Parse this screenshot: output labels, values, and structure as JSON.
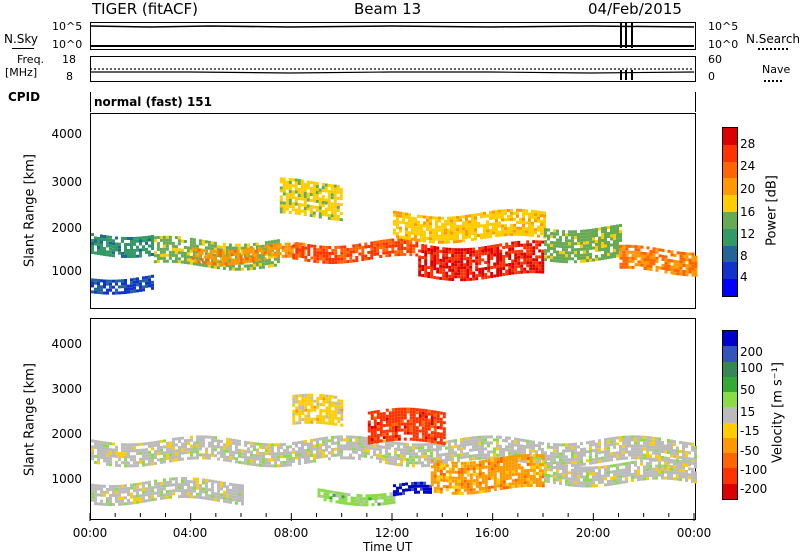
{
  "header": {
    "radar": "TIGER (fitACF)",
    "beam": "Beam 13",
    "date": "04/Feb/2015"
  },
  "top_panels": {
    "nsky_label": "N.Sky",
    "nsearch_label": "N.Search",
    "nsky_ticks": [
      "10^5",
      "10^0"
    ],
    "nsearch_ticks": [
      "10^5",
      "10^0"
    ],
    "freq_label_1": "Freq.",
    "freq_label_2": "[MHz]",
    "freq_ticks": [
      "18",
      "8"
    ],
    "nave_label": "Nave",
    "nave_ticks": [
      "60",
      "0"
    ],
    "cpid_label": "CPID",
    "cpid_text": "normal (fast) 151"
  },
  "x_axis": {
    "ticks": [
      "00:00",
      "04:00",
      "08:00",
      "12:00",
      "16:00",
      "20:00",
      "00:00"
    ],
    "label": "Time UT"
  },
  "power_panel": {
    "ylabel": "Slant Range [km]",
    "yticks": [
      "4000",
      "3000",
      "2000",
      "1000"
    ],
    "cbar_label": "Power [dB]",
    "cbar_ticks": [
      "28",
      "24",
      "20",
      "16",
      "12",
      "8",
      "4"
    ],
    "cbar_colors": [
      "#dd0000",
      "#ff3300",
      "#ff6600",
      "#ff9900",
      "#ffcc00",
      "#66aa55",
      "#339966",
      "#226699",
      "#1133cc",
      "#0000ff"
    ]
  },
  "velocity_panel": {
    "ylabel": "Slant Range [km]",
    "yticks": [
      "4000",
      "3000",
      "2000",
      "1000"
    ],
    "cbar_label": "Velocity [m s⁻¹]",
    "cbar_ticks": [
      "200",
      "100",
      "50",
      "15",
      "-15",
      "-50",
      "-100",
      "-200"
    ],
    "cbar_colors": [
      "#0000cc",
      "#3355bb",
      "#338855",
      "#33aa33",
      "#88dd44",
      "#bbbbbb",
      "#ffcc00",
      "#ff9900",
      "#ff6600",
      "#ff3300",
      "#dd0000"
    ]
  },
  "chart_data": [
    {
      "type": "heatmap",
      "title": "Beam 13",
      "xlabel": "Time UT",
      "ylabel": "Slant Range [km]",
      "xlim": [
        "00:00",
        "00:00"
      ],
      "ylim": [
        180,
        4500
      ],
      "colorbar": "Power [dB]",
      "colorbar_range": [
        0,
        30
      ],
      "bands": [
        {
          "t0": 0.0,
          "t1": 2.5,
          "r0": 1400,
          "r1": 1850,
          "value": 10
        },
        {
          "t0": 0.0,
          "t1": 2.5,
          "r0": 600,
          "r1": 900,
          "value": 6
        },
        {
          "t0": 2.5,
          "t1": 7.5,
          "r0": 1100,
          "r1": 1700,
          "value": 14
        },
        {
          "t0": 4.0,
          "t1": 8.5,
          "r0": 1250,
          "r1": 1550,
          "value": 20
        },
        {
          "t0": 7.5,
          "t1": 10.0,
          "r0": 2200,
          "r1": 3000,
          "value": 16
        },
        {
          "t0": 8.0,
          "t1": 13.0,
          "r0": 1300,
          "r1": 1650,
          "value": 24
        },
        {
          "t0": 13.0,
          "t1": 18.0,
          "r0": 900,
          "r1": 1600,
          "value": 27
        },
        {
          "t0": 12.0,
          "t1": 18.0,
          "r0": 1700,
          "r1": 2300,
          "value": 17
        },
        {
          "t0": 18.0,
          "t1": 21.0,
          "r0": 1300,
          "r1": 2000,
          "value": 14
        },
        {
          "t0": 21.0,
          "t1": 24.0,
          "r0": 1000,
          "r1": 1500,
          "value": 21
        }
      ]
    },
    {
      "type": "heatmap",
      "title": "Beam 13",
      "xlabel": "Time UT",
      "ylabel": "Slant Range [km]",
      "xlim": [
        "00:00",
        "00:00"
      ],
      "ylim": [
        180,
        4500
      ],
      "colorbar": "Velocity [m s⁻¹]",
      "colorbar_range": [
        -250,
        250
      ],
      "bands": [
        {
          "t0": 0.0,
          "t1": 24.0,
          "r0": 1400,
          "r1": 1900,
          "value": 0
        },
        {
          "t0": 0.0,
          "t1": 6.0,
          "r0": 600,
          "r1": 1000,
          "value": 0
        },
        {
          "t0": 8.0,
          "t1": 10.0,
          "r0": 2200,
          "r1": 2800,
          "value": -40
        },
        {
          "t0": 9.0,
          "t1": 12.0,
          "r0": 600,
          "r1": 800,
          "value": 40
        },
        {
          "t0": 12.0,
          "t1": 13.5,
          "r0": 700,
          "r1": 900,
          "value": 220
        },
        {
          "t0": 11.0,
          "t1": 14.0,
          "r0": 1800,
          "r1": 2500,
          "value": -180
        },
        {
          "t0": 13.5,
          "t1": 18.0,
          "r0": 800,
          "r1": 1500,
          "value": -90
        },
        {
          "t0": 18.0,
          "t1": 24.0,
          "r0": 1000,
          "r1": 1400,
          "value": 0
        }
      ]
    }
  ]
}
